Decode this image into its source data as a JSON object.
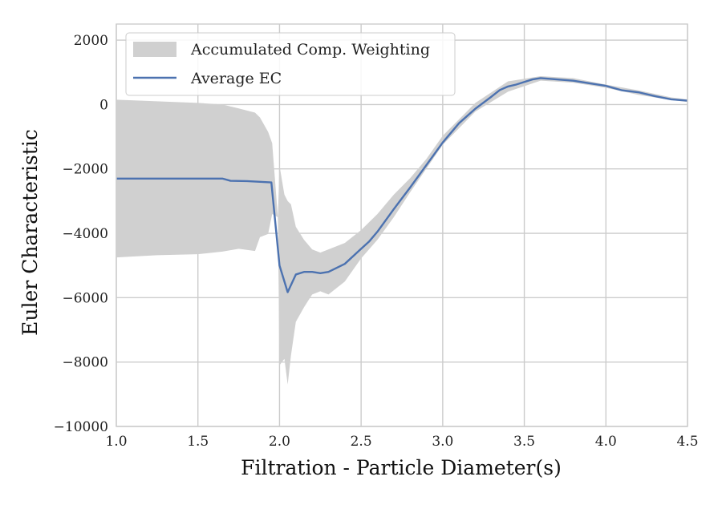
{
  "chart_data": {
    "type": "line",
    "title": "",
    "xlabel": "Filtration - Particle Diameter(s)",
    "ylabel": "Euler Characteristic",
    "xlim": [
      1.0,
      4.5
    ],
    "ylim": [
      -10000,
      2500
    ],
    "xticks": [
      1.0,
      1.5,
      2.0,
      2.5,
      3.0,
      3.5,
      4.0,
      4.5
    ],
    "xtick_labels": [
      "1.0",
      "1.5",
      "2.0",
      "2.5",
      "3.0",
      "3.5",
      "4.0",
      "4.5"
    ],
    "yticks": [
      -10000,
      -8000,
      -6000,
      -4000,
      -2000,
      0,
      2000
    ],
    "ytick_labels": [
      "−10000",
      "−8000",
      "−6000",
      "−4000",
      "−2000",
      "0",
      "2000"
    ],
    "grid": true,
    "legend_position": "top-left",
    "colors": {
      "line": "#4c72b0",
      "band": "#d0d0d0",
      "grid": "#cccccc",
      "spine": "#cccccc"
    },
    "series": [
      {
        "name": "Average EC",
        "kind": "line",
        "x": [
          1.0,
          1.25,
          1.5,
          1.65,
          1.7,
          1.8,
          1.88,
          1.95,
          2.0,
          2.05,
          2.1,
          2.15,
          2.2,
          2.25,
          2.3,
          2.4,
          2.5,
          2.55,
          2.6,
          2.7,
          2.8,
          2.9,
          3.0,
          3.1,
          3.2,
          3.3,
          3.35,
          3.4,
          3.45,
          3.5,
          3.55,
          3.6,
          3.7,
          3.8,
          3.9,
          4.0,
          4.1,
          4.2,
          4.3,
          4.4,
          4.5
        ],
        "y": [
          -2300,
          -2300,
          -2300,
          -2300,
          -2370,
          -2380,
          -2400,
          -2420,
          -5000,
          -5830,
          -5280,
          -5200,
          -5200,
          -5240,
          -5200,
          -4950,
          -4480,
          -4250,
          -3950,
          -3250,
          -2580,
          -1880,
          -1180,
          -580,
          -130,
          250,
          450,
          560,
          620,
          700,
          780,
          820,
          780,
          740,
          660,
          580,
          440,
          380,
          260,
          160,
          120
        ]
      },
      {
        "name": "Accumulated Comp. Weighting",
        "kind": "band",
        "x": [
          1.0,
          1.25,
          1.5,
          1.65,
          1.75,
          1.85,
          1.88,
          1.93,
          1.955,
          1.99,
          2.0,
          2.03,
          2.05,
          2.07,
          2.1,
          2.15,
          2.2,
          2.25,
          2.3,
          2.4,
          2.5,
          2.6,
          2.7,
          2.8,
          2.9,
          3.0,
          3.2,
          3.4,
          3.6,
          3.8,
          4.0,
          4.2,
          4.4,
          4.5
        ],
        "lower": [
          -4750,
          -4680,
          -4650,
          -4570,
          -4480,
          -4550,
          -4120,
          -4020,
          -3400,
          -3500,
          -8100,
          -7900,
          -8700,
          -7800,
          -6750,
          -6300,
          -5900,
          -5800,
          -5900,
          -5500,
          -4780,
          -4200,
          -3500,
          -2730,
          -1990,
          -1250,
          -220,
          400,
          740,
          680,
          520,
          300,
          140,
          80
        ],
        "upper": [
          150,
          100,
          50,
          0,
          -120,
          -250,
          -400,
          -850,
          -1200,
          -3500,
          -1900,
          -2800,
          -3000,
          -3100,
          -3800,
          -4200,
          -4500,
          -4600,
          -4500,
          -4300,
          -3900,
          -3400,
          -2800,
          -2290,
          -1690,
          -970,
          50,
          720,
          880,
          820,
          620,
          440,
          220,
          160
        ]
      }
    ]
  }
}
